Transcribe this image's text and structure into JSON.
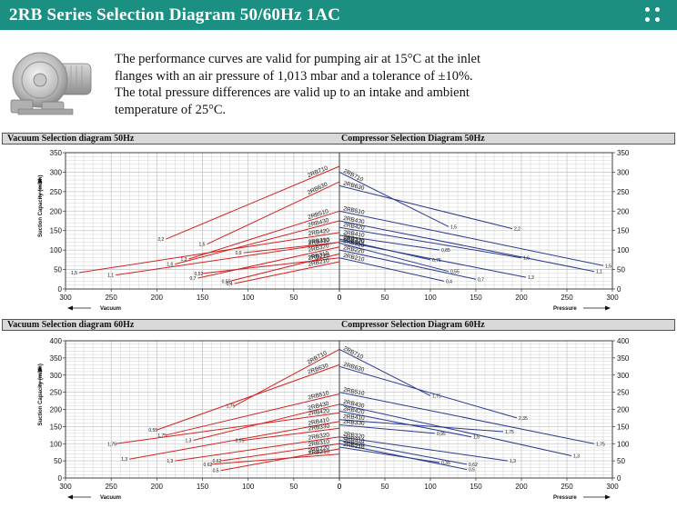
{
  "header": {
    "title": "2RB Series Selection Diagram 50/60Hz 1AC",
    "menu_icon": "grid-dots-icon"
  },
  "intro": {
    "text": "The performance curves are valid for pumping air at 15°C at the inlet flanges with an air pressure of 1,013 mbar and a tolerance of ±10%. The total pressure differences are valid up to an intake and ambient temperature of 25°C."
  },
  "sections": {
    "vac50": "Vacuum Selection diagram 50Hz",
    "comp50": "Compressor Selection Diagram 50Hz",
    "vac60": "Vacuum Selection diagram 60Hz",
    "comp60": "Compressor Selection Diagram 60Hz"
  },
  "colors": {
    "header": "#1a8f82",
    "vacuum_curve": "#d42020",
    "compressor_curve": "#283a8c",
    "grid": "#c8c8c8"
  },
  "chart_data": [
    {
      "type": "line",
      "title": "Vacuum Selection diagram 50Hz",
      "xlabel": "Vacuum",
      "ylabel": "Suction Capacity (m3/h)",
      "xlim": [
        300,
        0
      ],
      "ylim": [
        0,
        350
      ],
      "xticks": [
        300,
        250,
        200,
        150,
        100,
        50,
        0
      ],
      "yticks": [
        0,
        50,
        100,
        150,
        200,
        250,
        300,
        350
      ],
      "series": [
        {
          "name": "2RB710",
          "start_label": "2,2",
          "x": [
            190,
            0
          ],
          "y": [
            128,
            315
          ]
        },
        {
          "name": "2RB630",
          "start_label": "1,5",
          "x": [
            145,
            0
          ],
          "y": [
            115,
            275
          ]
        },
        {
          "name": "2RB510",
          "start_label": "1,3",
          "x": [
            165,
            0
          ],
          "y": [
            77,
            200
          ]
        },
        {
          "name": "2RB430",
          "start_label": "1,6",
          "x": [
            180,
            0
          ],
          "y": [
            64,
            175
          ]
        },
        {
          "name": "2RB420",
          "start_label": "1,5",
          "x": [
            285,
            0
          ],
          "y": [
            42,
            145
          ]
        },
        {
          "name": "2RB410",
          "start_label": "1,1",
          "x": [
            245,
            0
          ],
          "y": [
            36,
            120
          ]
        },
        {
          "name": "2RB330",
          "start_label": "0,9",
          "x": [
            105,
            0
          ],
          "y": [
            93,
            120
          ]
        },
        {
          "name": "2RB320",
          "start_label": "0,7",
          "x": [
            155,
            0
          ],
          "y": [
            28,
            108
          ]
        },
        {
          "name": "2RB310",
          "start_label": "0,55",
          "x": [
            120,
            0
          ],
          "y": [
            20,
            90
          ]
        },
        {
          "name": "2RB220",
          "start_label": "0,52",
          "x": [
            150,
            0
          ],
          "y": [
            40,
            80
          ]
        },
        {
          "name": "2RB210",
          "start_label": "0,4",
          "x": [
            115,
            0
          ],
          "y": [
            14,
            70
          ]
        }
      ]
    },
    {
      "type": "line",
      "title": "Compressor Selection Diagram 50Hz",
      "xlabel": "Pressure",
      "ylabel": "",
      "xlim": [
        0,
        300
      ],
      "ylim": [
        0,
        350
      ],
      "xticks": [
        0,
        50,
        100,
        150,
        200,
        250,
        300
      ],
      "yticks": [
        0,
        50,
        100,
        150,
        200,
        250,
        300,
        350
      ],
      "series": [
        {
          "name": "2RB710",
          "end_label": "1,5",
          "x": [
            0,
            120
          ],
          "y": [
            300,
            160
          ]
        },
        {
          "name": "2RB630",
          "end_label": "2,2",
          "x": [
            0,
            190
          ],
          "y": [
            265,
            155
          ]
        },
        {
          "name": "2RB510",
          "end_label": "1,5",
          "x": [
            0,
            290
          ],
          "y": [
            200,
            60
          ]
        },
        {
          "name": "2RB430",
          "end_label": "1,1",
          "x": [
            0,
            280
          ],
          "y": [
            175,
            45
          ]
        },
        {
          "name": "2RB420",
          "end_label": "1,6",
          "x": [
            0,
            200
          ],
          "y": [
            158,
            80
          ]
        },
        {
          "name": "2RB410",
          "end_label": "0,85",
          "x": [
            0,
            110
          ],
          "y": [
            138,
            100
          ]
        },
        {
          "name": "2RB330",
          "end_label": "0,75",
          "x": [
            0,
            100
          ],
          "y": [
            128,
            75
          ]
        },
        {
          "name": "2RB320",
          "end_label": "1,3",
          "x": [
            0,
            205
          ],
          "y": [
            124,
            30
          ]
        },
        {
          "name": "2RB310",
          "end_label": "0,55",
          "x": [
            0,
            120
          ],
          "y": [
            118,
            45
          ]
        },
        {
          "name": "2RB220",
          "end_label": "0,7",
          "x": [
            0,
            150
          ],
          "y": [
            100,
            25
          ]
        },
        {
          "name": "2RB210",
          "end_label": "0,4",
          "x": [
            0,
            115
          ],
          "y": [
            80,
            20
          ]
        }
      ]
    },
    {
      "type": "line",
      "title": "Vacuum Selection diagram 60Hz",
      "xlabel": "Vacuum",
      "ylabel": "Suction Capacity (m3/h)",
      "xlim": [
        300,
        0
      ],
      "ylim": [
        0,
        400
      ],
      "xticks": [
        300,
        250,
        200,
        150,
        100,
        50,
        0
      ],
      "yticks": [
        0,
        50,
        100,
        150,
        200,
        250,
        300,
        350,
        400
      ],
      "series": [
        {
          "name": "2RB710",
          "start_label": "1,75",
          "x": [
            115,
            0
          ],
          "y": [
            210,
            375
          ]
        },
        {
          "name": "2RB630",
          "start_label": "0,55",
          "x": [
            200,
            0
          ],
          "y": [
            140,
            330
          ]
        },
        {
          "name": "2RB510",
          "start_label": "1,75",
          "x": [
            190,
            0
          ],
          "y": [
            125,
            245
          ]
        },
        {
          "name": "2RB430",
          "start_label": "1,3",
          "x": [
            160,
            0
          ],
          "y": [
            110,
            215
          ]
        },
        {
          "name": "2RB420",
          "start_label": "1,75",
          "x": [
            245,
            0
          ],
          "y": [
            100,
            190
          ]
        },
        {
          "name": "2RB410",
          "start_label": "1,3",
          "x": [
            230,
            0
          ],
          "y": [
            55,
            165
          ]
        },
        {
          "name": "2RB330",
          "start_label": "0,95",
          "x": [
            105,
            0
          ],
          "y": [
            110,
            145
          ]
        },
        {
          "name": "2RB320",
          "start_label": "1,3",
          "x": [
            180,
            0
          ],
          "y": [
            50,
            120
          ]
        },
        {
          "name": "2RB310",
          "start_label": "0,62",
          "x": [
            130,
            0
          ],
          "y": [
            50,
            100
          ]
        },
        {
          "name": "2RB220",
          "start_label": "0,5",
          "x": [
            130,
            0
          ],
          "y": [
            22,
            85
          ]
        },
        {
          "name": "2RB210",
          "start_label": "0,62",
          "x": [
            140,
            0
          ],
          "y": [
            40,
            70
          ]
        }
      ]
    },
    {
      "type": "line",
      "title": "Compressor Selection Diagram 60Hz",
      "xlabel": "Pressure",
      "ylabel": "",
      "xlim": [
        0,
        300
      ],
      "ylim": [
        0,
        400
      ],
      "xticks": [
        0,
        50,
        100,
        150,
        200,
        250,
        300
      ],
      "yticks": [
        0,
        50,
        100,
        150,
        200,
        250,
        300,
        350,
        400
      ],
      "series": [
        {
          "name": "2RB710",
          "end_label": "1,75",
          "x": [
            0,
            100
          ],
          "y": [
            375,
            240
          ]
        },
        {
          "name": "2RB630",
          "end_label": "2,35",
          "x": [
            0,
            195
          ],
          "y": [
            325,
            175
          ]
        },
        {
          "name": "2RB510",
          "end_label": "1,75",
          "x": [
            0,
            280
          ],
          "y": [
            250,
            100
          ]
        },
        {
          "name": "2RB430",
          "end_label": "1,3",
          "x": [
            0,
            255
          ],
          "y": [
            215,
            65
          ]
        },
        {
          "name": "2RB420",
          "end_label": "1,5",
          "x": [
            0,
            145
          ],
          "y": [
            195,
            120
          ]
        },
        {
          "name": "2RB410",
          "end_label": "1,75",
          "x": [
            0,
            180
          ],
          "y": [
            170,
            135
          ]
        },
        {
          "name": "2RB330",
          "end_label": "0,95",
          "x": [
            0,
            105
          ],
          "y": [
            155,
            130
          ]
        },
        {
          "name": "2RB320",
          "end_label": "1,3",
          "x": [
            0,
            185
          ],
          "y": [
            120,
            50
          ]
        },
        {
          "name": "2RB310",
          "end_label": "0,62",
          "x": [
            0,
            140
          ],
          "y": [
            110,
            40
          ]
        },
        {
          "name": "2RB220",
          "end_label": "0,5",
          "x": [
            0,
            140
          ],
          "y": [
            100,
            25
          ]
        },
        {
          "name": "2RB210",
          "end_label": "0,35",
          "x": [
            0,
            110
          ],
          "y": [
            90,
            45
          ]
        }
      ]
    }
  ]
}
